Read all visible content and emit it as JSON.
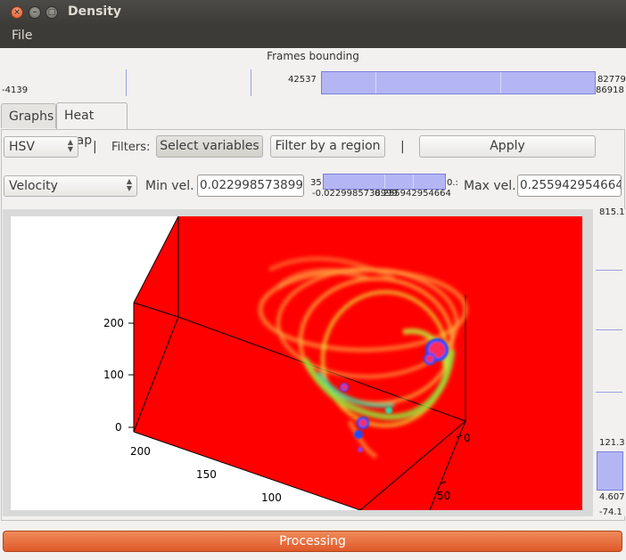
{
  "window": {
    "title": "Density"
  },
  "menu": {
    "file": "File"
  },
  "frames": {
    "label": "Frames bounding",
    "left_min": "-4139",
    "handle_value": "42537",
    "right_top": "82779",
    "right_bottom": "86918"
  },
  "tabs": [
    {
      "label": "Graphs",
      "active": false
    },
    {
      "label": "Heat map",
      "active": true
    }
  ],
  "controls": {
    "colormap": "HSV",
    "sep1": "|",
    "filters_label": "Filters:",
    "select_variables": "Select variables",
    "filter_region": "Filter by a region",
    "sep2": "|",
    "apply": "Apply",
    "variable": "Velocity",
    "min_label": "Min vel.",
    "min_value": "0.0229985738999",
    "slider_top_left": "35",
    "slider_top_right": "0.:",
    "slider_bottom": "-0.0229985738999",
    "slider_bottom_right": "0.255942954664",
    "max_label": "Max vel.",
    "max_value": "0.255942954664"
  },
  "right_scale": {
    "top": "815.1",
    "mid": "121.3",
    "low": "4.607",
    "bottom": "-74.1"
  },
  "plot": {
    "z_ticks": [
      "200",
      "100",
      "0"
    ],
    "x_ticks": [
      "200",
      "150",
      "100"
    ],
    "y_ticks": [
      "0",
      "50"
    ]
  },
  "status": {
    "progress_label": "Processing"
  },
  "colors": {
    "accent": "#e9692f",
    "range_fill": "#b4b6f4",
    "heat_background": "#ff0000"
  }
}
